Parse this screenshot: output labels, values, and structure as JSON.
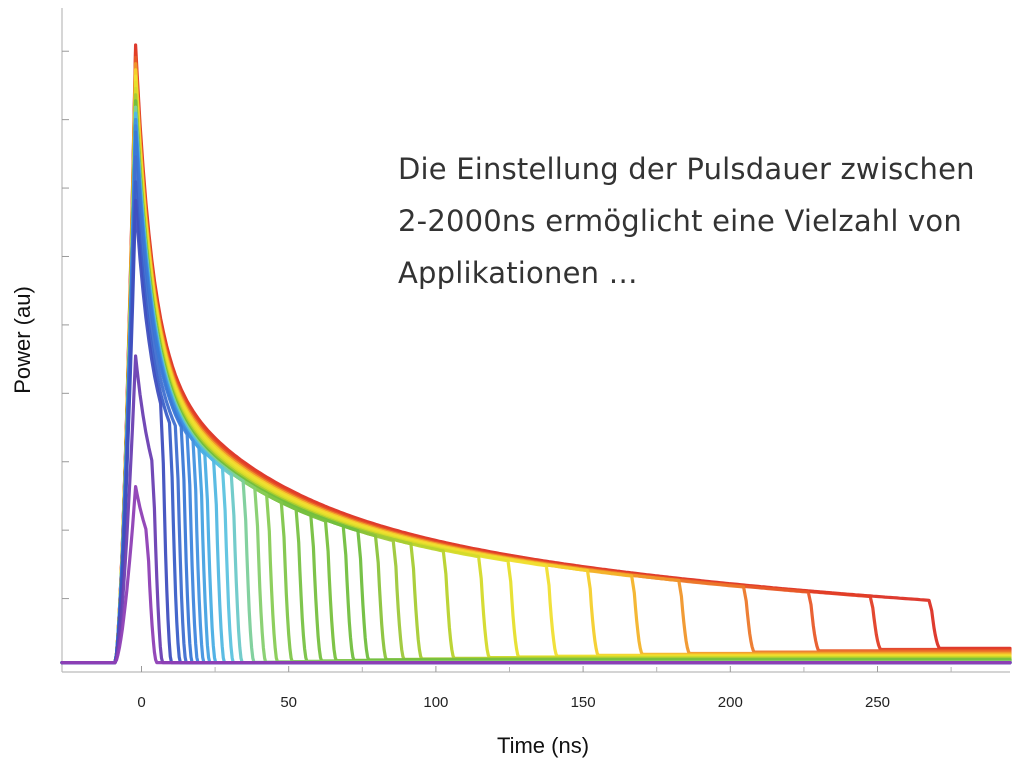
{
  "chart_data": {
    "type": "line",
    "xlabel": "Time (ns)",
    "ylabel": "Power (au)",
    "xlim": [
      -27,
      295
    ],
    "ylim": [
      0,
      100
    ],
    "x_ticks": [
      0,
      50,
      100,
      150,
      200,
      250
    ],
    "x_tick_labels": [
      "0",
      "50",
      "100",
      "150",
      "200",
      "250"
    ],
    "y_ticks": [
      11,
      22,
      33,
      44,
      55,
      66,
      77,
      88,
      99
    ],
    "y_tick_labels": [],
    "annotation": {
      "lines": [
        "Die Einstellung der Pulsdauer zwischen",
        "2-2000ns ermöglicht eine Vielzahl von",
        "Applikationen …"
      ]
    },
    "decay_tail_level": 2.8,
    "series": [
      {
        "duration": 2,
        "peak": 29,
        "color": "#8e3fb5"
      },
      {
        "duration": 4,
        "peak": 50,
        "color": "#6a3fb2"
      },
      {
        "duration": 7,
        "peak": 75,
        "color": "#3f4fbf"
      },
      {
        "duration": 10,
        "peak": 78,
        "color": "#3a5fc8"
      },
      {
        "duration": 12,
        "peak": 82,
        "color": "#3f6fd0"
      },
      {
        "duration": 14,
        "peak": 86,
        "color": "#3a78d6"
      },
      {
        "duration": 16,
        "peak": 87,
        "color": "#3f86dd"
      },
      {
        "duration": 18,
        "peak": 88,
        "color": "#4394e0"
      },
      {
        "duration": 20,
        "peak": 88,
        "color": "#46a2e2"
      },
      {
        "duration": 22,
        "peak": 88,
        "color": "#4aaee4"
      },
      {
        "duration": 25,
        "peak": 89,
        "color": "#52b8e2"
      },
      {
        "duration": 28,
        "peak": 89,
        "color": "#5cc3df"
      },
      {
        "duration": 31,
        "peak": 89,
        "color": "#6cc9c8"
      },
      {
        "duration": 35,
        "peak": 90,
        "color": "#7ccf9a"
      },
      {
        "duration": 39,
        "peak": 90,
        "color": "#86cf6e"
      },
      {
        "duration": 43,
        "peak": 90,
        "color": "#88cc55"
      },
      {
        "duration": 48,
        "peak": 90,
        "color": "#7fc64a"
      },
      {
        "duration": 53,
        "peak": 90,
        "color": "#78c244"
      },
      {
        "duration": 58,
        "peak": 90,
        "color": "#76c040"
      },
      {
        "duration": 63,
        "peak": 90,
        "color": "#78c13e"
      },
      {
        "duration": 69,
        "peak": 91,
        "color": "#72bf3f"
      },
      {
        "duration": 74,
        "peak": 91,
        "color": "#70be3e"
      },
      {
        "duration": 80,
        "peak": 91,
        "color": "#8bc33b"
      },
      {
        "duration": 86,
        "peak": 91,
        "color": "#9ec83a"
      },
      {
        "duration": 92,
        "peak": 92,
        "color": "#a6cc33"
      },
      {
        "duration": 103,
        "peak": 92,
        "color": "#b8d22c"
      },
      {
        "duration": 115,
        "peak": 93,
        "color": "#d4da2a"
      },
      {
        "duration": 125,
        "peak": 94,
        "color": "#e6df2c"
      },
      {
        "duration": 138,
        "peak": 95,
        "color": "#f0df32"
      },
      {
        "duration": 152,
        "peak": 96,
        "color": "#f4cf2c"
      },
      {
        "duration": 167,
        "peak": 96,
        "color": "#f3b32a"
      },
      {
        "duration": 183,
        "peak": 97,
        "color": "#f0962a"
      },
      {
        "duration": 205,
        "peak": 97,
        "color": "#ec782a"
      },
      {
        "duration": 227,
        "peak": 98,
        "color": "#e85a28"
      },
      {
        "duration": 248,
        "peak": 99,
        "color": "#e23e26"
      },
      {
        "duration": 268,
        "peak": 100,
        "color": "#dc3024"
      }
    ]
  }
}
